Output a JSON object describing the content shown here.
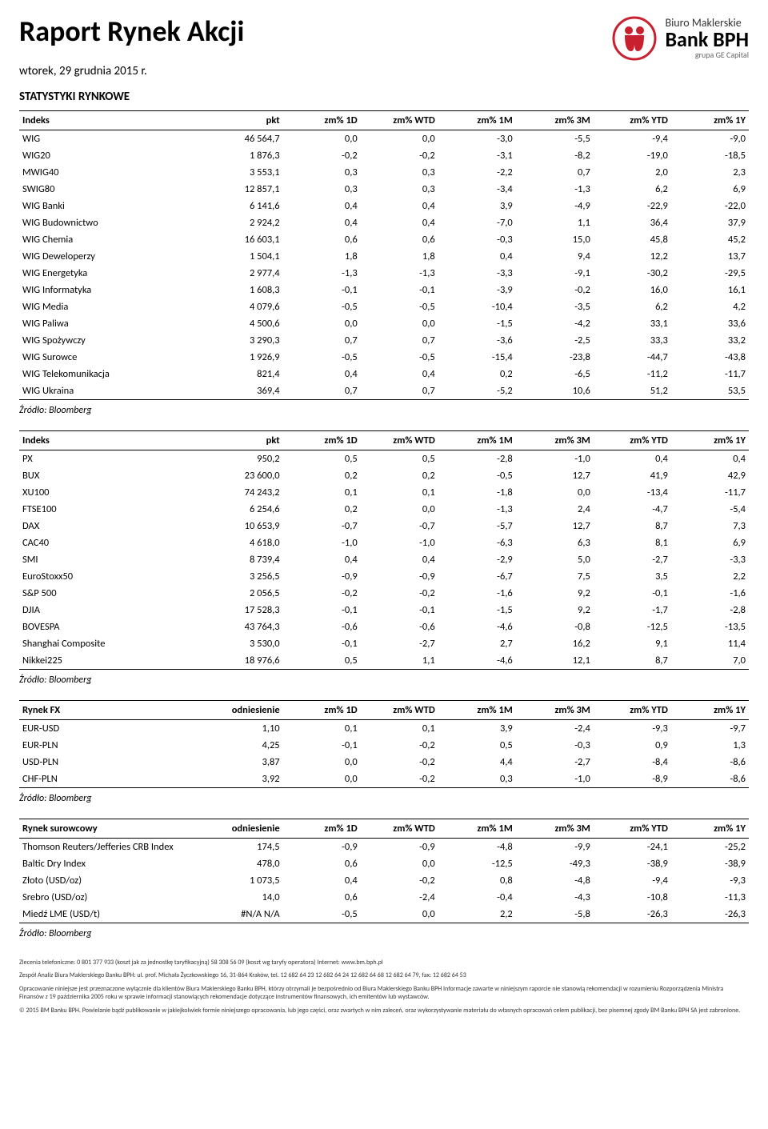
{
  "header": {
    "title": "Raport Rynek Akcji",
    "date": "wtorek, 29 grudnia 2015 r.",
    "logo_line1": "Biuro Maklerskie",
    "logo_line2": "Bank BPH",
    "logo_line3": "grupa GE Capital",
    "logo_color": "#c8202f"
  },
  "section_title": "STATYSTYKI RYNKOWE",
  "source_label": "Źródło: Bloomberg",
  "columns_pkt": [
    "pkt",
    "zm% 1D",
    "zm% WTD",
    "zm% 1M",
    "zm% 3M",
    "zm% YTD",
    "zm% 1Y"
  ],
  "columns_odn": [
    "odniesienie",
    "zm% 1D",
    "zm% WTD",
    "zm% 1M",
    "zm% 3M",
    "zm% YTD",
    "zm% 1Y"
  ],
  "table1": {
    "header": "Indeks",
    "rows": [
      [
        "WIG",
        "46 564,7",
        "0,0",
        "0,0",
        "-3,0",
        "-5,5",
        "-9,4",
        "-9,0"
      ],
      [
        "WIG20",
        "1 876,3",
        "-0,2",
        "-0,2",
        "-3,1",
        "-8,2",
        "-19,0",
        "-18,5"
      ],
      [
        "MWIG40",
        "3 553,1",
        "0,3",
        "0,3",
        "-2,2",
        "0,7",
        "2,0",
        "2,3"
      ],
      [
        "SWIG80",
        "12 857,1",
        "0,3",
        "0,3",
        "-3,4",
        "-1,3",
        "6,2",
        "6,9"
      ],
      [
        "WIG Banki",
        "6 141,6",
        "0,4",
        "0,4",
        "3,9",
        "-4,9",
        "-22,9",
        "-22,0"
      ],
      [
        "WIG Budownictwo",
        "2 924,2",
        "0,4",
        "0,4",
        "-7,0",
        "1,1",
        "36,4",
        "37,9"
      ],
      [
        "WIG Chemia",
        "16 603,1",
        "0,6",
        "0,6",
        "-0,3",
        "15,0",
        "45,8",
        "45,2"
      ],
      [
        "WIG Deweloperzy",
        "1 504,1",
        "1,8",
        "1,8",
        "0,4",
        "9,4",
        "12,2",
        "13,7"
      ],
      [
        "WIG Energetyka",
        "2 977,4",
        "-1,3",
        "-1,3",
        "-3,3",
        "-9,1",
        "-30,2",
        "-29,5"
      ],
      [
        "WIG Informatyka",
        "1 608,3",
        "-0,1",
        "-0,1",
        "-3,9",
        "-0,2",
        "16,0",
        "16,1"
      ],
      [
        "WIG Media",
        "4 079,6",
        "-0,5",
        "-0,5",
        "-10,4",
        "-3,5",
        "6,2",
        "4,2"
      ],
      [
        "WIG Paliwa",
        "4 500,6",
        "0,0",
        "0,0",
        "-1,5",
        "-4,2",
        "33,1",
        "33,6"
      ],
      [
        "WIG Spożywczy",
        "3 290,3",
        "0,7",
        "0,7",
        "-3,6",
        "-2,5",
        "33,3",
        "33,2"
      ],
      [
        "WIG Surowce",
        "1 926,9",
        "-0,5",
        "-0,5",
        "-15,4",
        "-23,8",
        "-44,7",
        "-43,8"
      ],
      [
        "WIG Telekomunikacja",
        "821,4",
        "0,4",
        "0,4",
        "0,2",
        "-6,5",
        "-11,2",
        "-11,7"
      ],
      [
        "WIG Ukraina",
        "369,4",
        "0,7",
        "0,7",
        "-5,2",
        "10,6",
        "51,2",
        "53,5"
      ]
    ]
  },
  "table2": {
    "header": "Indeks",
    "rows": [
      [
        "PX",
        "950,2",
        "0,5",
        "0,5",
        "-2,8",
        "-1,0",
        "0,4",
        "0,4"
      ],
      [
        "BUX",
        "23 600,0",
        "0,2",
        "0,2",
        "-0,5",
        "12,7",
        "41,9",
        "42,9"
      ],
      [
        "XU100",
        "74 243,2",
        "0,1",
        "0,1",
        "-1,8",
        "0,0",
        "-13,4",
        "-11,7"
      ],
      [
        "FTSE100",
        "6 254,6",
        "0,2",
        "0,0",
        "-1,3",
        "2,4",
        "-4,7",
        "-5,4"
      ],
      [
        "DAX",
        "10 653,9",
        "-0,7",
        "-0,7",
        "-5,7",
        "12,7",
        "8,7",
        "7,3"
      ],
      [
        "CAC40",
        "4 618,0",
        "-1,0",
        "-1,0",
        "-6,3",
        "6,3",
        "8,1",
        "6,9"
      ],
      [
        "SMI",
        "8 739,4",
        "0,4",
        "0,4",
        "-2,9",
        "5,0",
        "-2,7",
        "-3,3"
      ],
      [
        "EuroStoxx50",
        "3 256,5",
        "-0,9",
        "-0,9",
        "-6,7",
        "7,5",
        "3,5",
        "2,2"
      ],
      [
        "S&P 500",
        "2 056,5",
        "-0,2",
        "-0,2",
        "-1,6",
        "9,2",
        "-0,1",
        "-1,6"
      ],
      [
        "DJIA",
        "17 528,3",
        "-0,1",
        "-0,1",
        "-1,5",
        "9,2",
        "-1,7",
        "-2,8"
      ],
      [
        "BOVESPA",
        "43 764,3",
        "-0,6",
        "-0,6",
        "-4,6",
        "-0,8",
        "-12,5",
        "-13,5"
      ],
      [
        "Shanghai Composite",
        "3 530,0",
        "-0,1",
        "-2,7",
        "2,7",
        "16,2",
        "9,1",
        "11,4"
      ],
      [
        "Nikkei225",
        "18 976,6",
        "0,5",
        "1,1",
        "-4,6",
        "12,1",
        "8,7",
        "7,0"
      ]
    ]
  },
  "table3": {
    "header": "Rynek FX",
    "rows": [
      [
        "EUR-USD",
        "1,10",
        "0,1",
        "0,1",
        "3,9",
        "-2,4",
        "-9,3",
        "-9,7"
      ],
      [
        "EUR-PLN",
        "4,25",
        "-0,1",
        "-0,2",
        "0,5",
        "-0,3",
        "0,9",
        "1,3"
      ],
      [
        "USD-PLN",
        "3,87",
        "0,0",
        "-0,2",
        "4,4",
        "-2,7",
        "-8,4",
        "-8,6"
      ],
      [
        "CHF-PLN",
        "3,92",
        "0,0",
        "-0,2",
        "0,3",
        "-1,0",
        "-8,9",
        "-8,6"
      ]
    ]
  },
  "table4": {
    "header": "Rynek surowcowy",
    "rows": [
      [
        "Thomson Reuters/Jefferies CRB Index",
        "174,5",
        "-0,9",
        "-0,9",
        "-4,8",
        "-9,9",
        "-24,1",
        "-25,2"
      ],
      [
        "Baltic Dry Index",
        "478,0",
        "0,6",
        "0,0",
        "-12,5",
        "-49,3",
        "-38,9",
        "-38,9"
      ],
      [
        "Złoto (USD/oz)",
        "1 073,5",
        "0,4",
        "-0,2",
        "0,8",
        "-4,8",
        "-9,4",
        "-9,3"
      ],
      [
        "Srebro (USD/oz)",
        "14,0",
        "0,6",
        "-2,4",
        "-0,4",
        "-4,3",
        "-10,8",
        "-11,3"
      ],
      [
        "Miedź LME (USD/t)",
        "#N/A N/A",
        "-0,5",
        "0,0",
        "2,2",
        "-5,8",
        "-26,3",
        "-26,3"
      ]
    ]
  },
  "footer": {
    "p1": "Zlecenia telefoniczne: 0 801 377 933 (koszt jak za jednostkę taryfikacyjną)  58 308 56 09 (koszt wg taryfy operatora)  Internet: www.bm.bph.pl",
    "p2": "Zespół Analiz Biura Maklerskiego Banku BPH: ul. prof. Michała Życzkowskiego 16, 31-864 Kraków,  tel. 12 682 64 23  12 682 64 24  12 682 64 68  12 682 64 79,  fax: 12 682 64 53",
    "p3": "Opracowanie niniejsze jest przeznaczone wyłącznie dla klientów Biura Maklerskiego Banku BPH, którzy otrzymali je bezpośrednio od Biura Maklerskiego Banku BPH Informacje zawarte w niniejszym raporcie nie stanowią rekomendacji w rozumieniu Rozporządzenia Ministra Finansów z 19 października 2005 roku w sprawie informacji stanowiących rekomendacje dotyczące instrumentów finansowych, ich emitentów lub wystawców.",
    "p4": "© 2015 BM Banku BPH. Powielanie bądź publikowanie w jakiejkolwiek formie niniejszego opracowania, lub jego części, oraz zwartych w nim zaleceń, oraz wykorzystywanie materiału do własnych opracowań celem publikacji, bez pisemnej zgody BM Banku BPH SA jest zabronione."
  }
}
